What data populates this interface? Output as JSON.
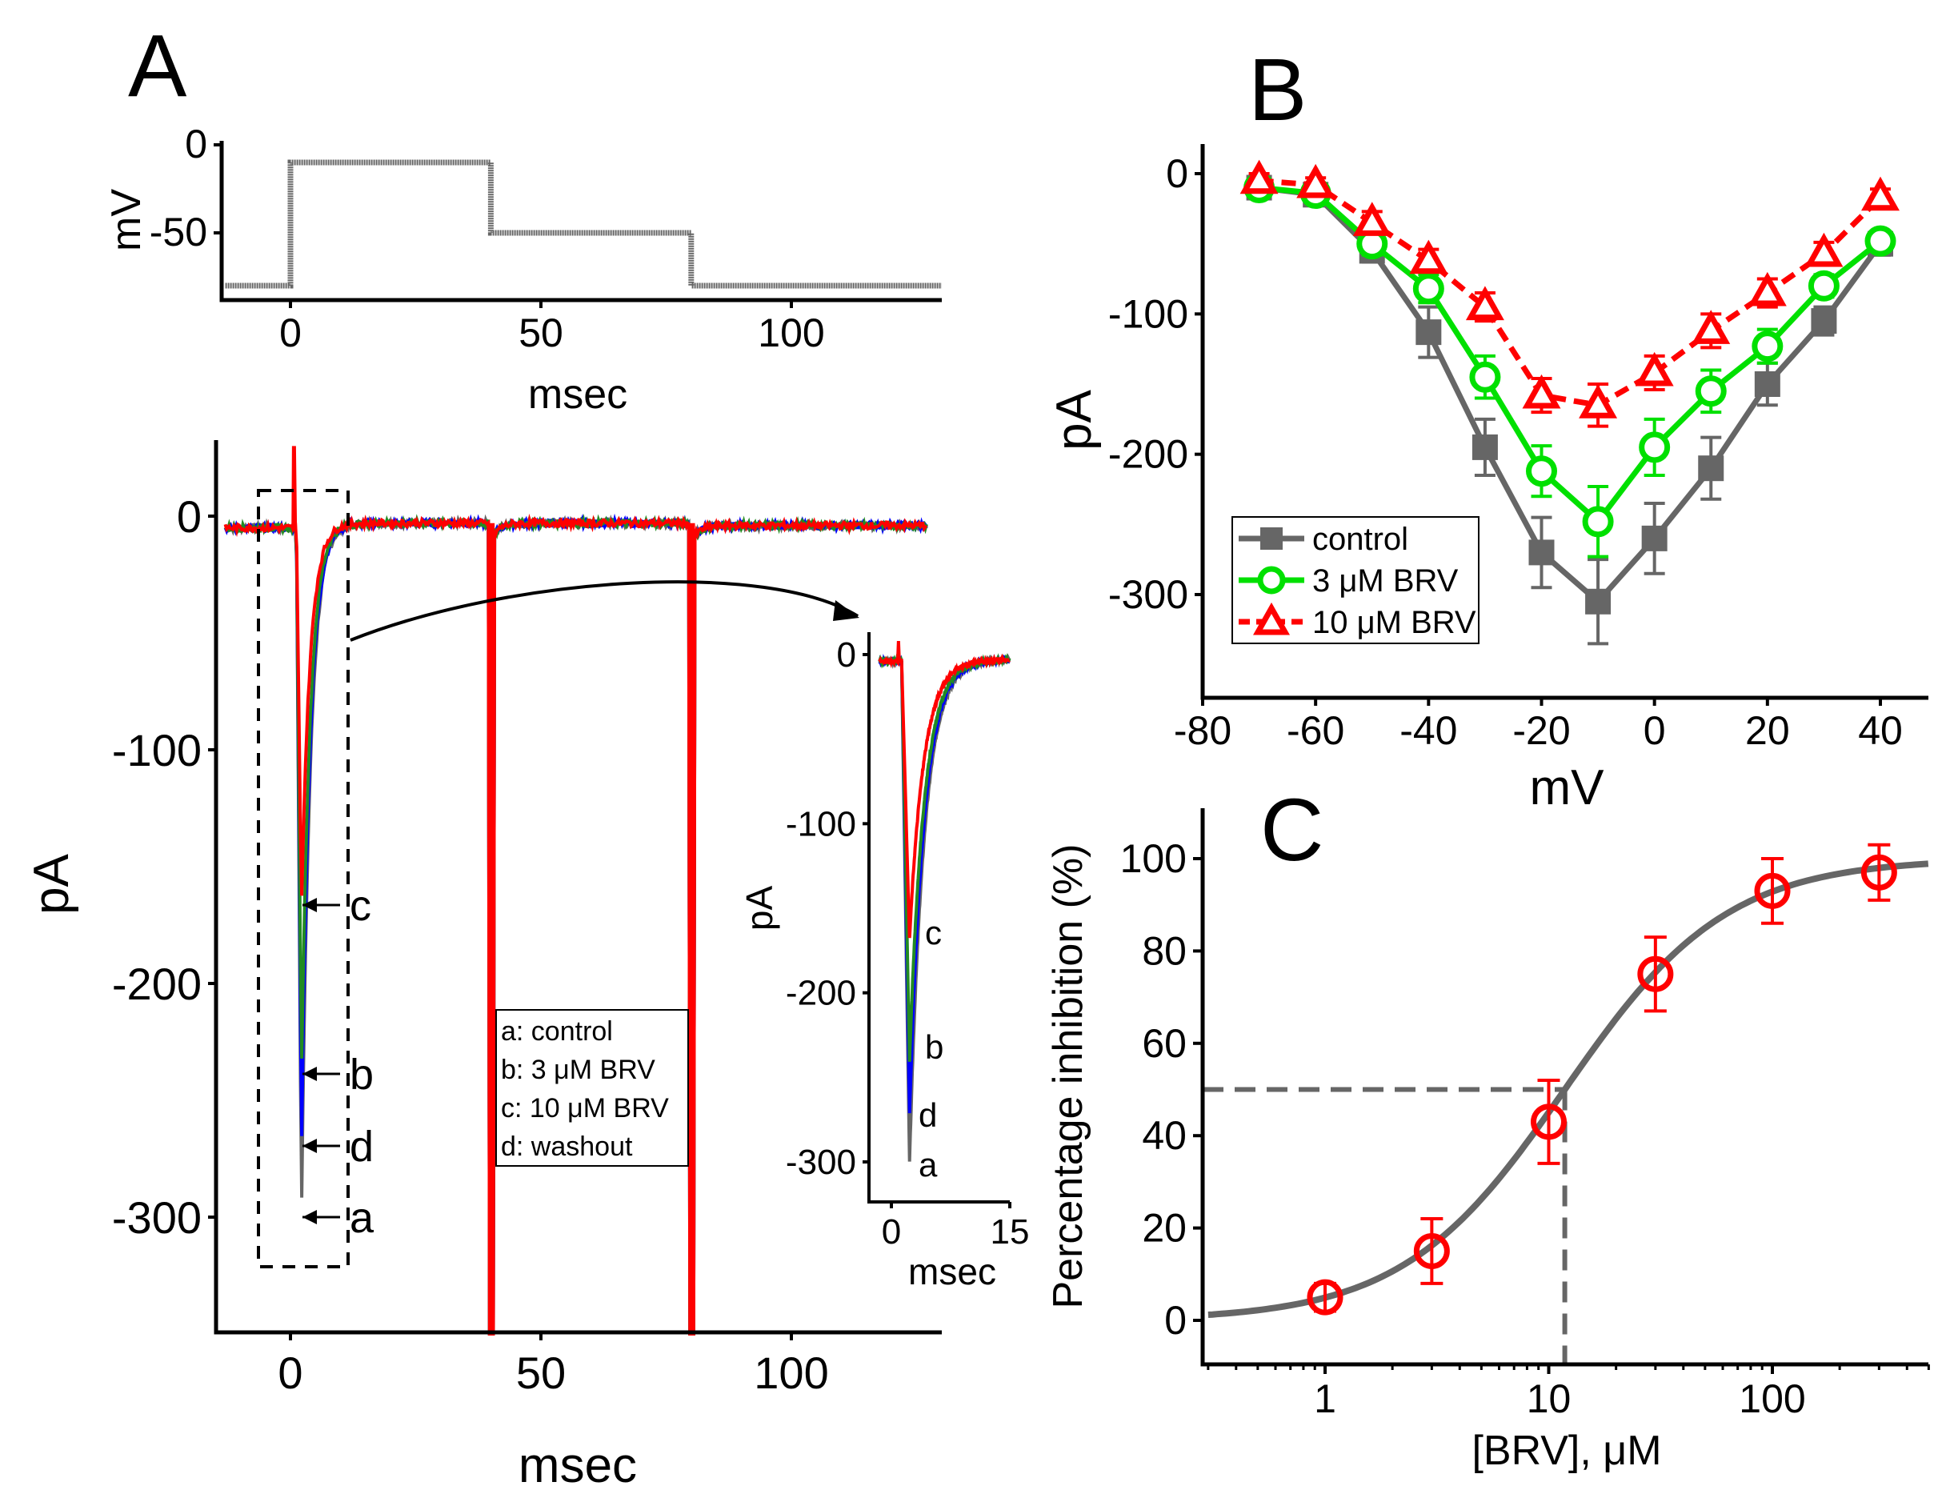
{
  "panels": {
    "A": "A",
    "B": "B",
    "C": "C"
  },
  "colors": {
    "control": "#666666",
    "brv3": "#00e000",
    "brv10": "#ff0000",
    "washout": "#0000ff",
    "trace_green": "#228b22",
    "axis": "#000000"
  },
  "chart_data": [
    {
      "id": "A-protocol",
      "type": "line",
      "title": "",
      "xlabel": "msec",
      "ylabel": "mV",
      "xlim": [
        -13,
        130
      ],
      "ylim": [
        -90,
        3
      ],
      "xticks": [
        0,
        50,
        100
      ],
      "yticks": [
        0,
        -50
      ],
      "x": [
        -13,
        0,
        0,
        40,
        40,
        80,
        80,
        130
      ],
      "y": [
        -80,
        -80,
        -10,
        -10,
        -50,
        -50,
        -80,
        -80
      ]
    },
    {
      "id": "A-traces",
      "type": "line",
      "title": "",
      "xlabel": "msec",
      "ylabel": "pA",
      "xlim": [
        -15,
        130
      ],
      "ylim": [
        -350,
        32
      ],
      "xticks": [
        0,
        50,
        100
      ],
      "yticks": [
        0,
        -100,
        -200,
        -300
      ],
      "series": [
        {
          "key": "a",
          "name": "control",
          "peak": -300
        },
        {
          "key": "d",
          "name": "washout",
          "peak": -272
        },
        {
          "key": "b",
          "name": "3 μM BRV",
          "peak": -240
        },
        {
          "key": "c",
          "name": "10 μM BRV",
          "peak": -168
        }
      ],
      "legend": [
        "a: control",
        "b: 3 μM BRV",
        "c: 10 μM BRV",
        "d: washout"
      ],
      "peak_labels": [
        "c",
        "b",
        "d",
        "a"
      ],
      "annotations": [
        "dashed box around 0-12 msec expanded in inset"
      ]
    },
    {
      "id": "A-inset",
      "type": "line",
      "title": "",
      "xlabel": "msec",
      "ylabel": "pA",
      "xlim": [
        -2,
        15
      ],
      "ylim": [
        -322,
        10
      ],
      "xticks": [
        0,
        15
      ],
      "yticks": [
        0,
        -100,
        -200,
        -300
      ],
      "peak_labels": [
        "c",
        "b",
        "d",
        "a"
      ]
    },
    {
      "id": "B",
      "type": "line",
      "title": "",
      "xlabel": "mV",
      "ylabel": "pA",
      "xlim": [
        -80,
        50
      ],
      "ylim": [
        -375,
        25
      ],
      "xticks": [
        -80,
        -60,
        -40,
        -20,
        0,
        20,
        40
      ],
      "yticks": [
        0,
        -100,
        -200,
        -300
      ],
      "legend_position": "bottom-left",
      "x": [
        -70,
        -60,
        -50,
        -40,
        -30,
        -20,
        -10,
        0,
        10,
        20,
        30,
        40
      ],
      "series": [
        {
          "name": "control",
          "marker": "square",
          "values": [
            -10,
            -15,
            -55,
            -113,
            -195,
            -270,
            -305,
            -260,
            -210,
            -150,
            -105,
            -50
          ],
          "err": [
            5,
            5,
            8,
            18,
            20,
            25,
            30,
            25,
            22,
            15,
            10,
            8
          ]
        },
        {
          "name": "3 μM BRV",
          "marker": "circle",
          "values": [
            -10,
            -14,
            -50,
            -82,
            -145,
            -212,
            -248,
            -195,
            -155,
            -123,
            -80,
            -48
          ],
          "err": [
            5,
            5,
            8,
            10,
            15,
            18,
            25,
            20,
            15,
            12,
            8,
            6
          ]
        },
        {
          "name": "10 μM BRV",
          "marker": "triangle",
          "values": [
            -5,
            -8,
            -35,
            -62,
            -95,
            -158,
            -165,
            -142,
            -112,
            -85,
            -57,
            -17
          ],
          "err": [
            5,
            5,
            8,
            8,
            10,
            12,
            15,
            12,
            12,
            10,
            8,
            6
          ]
        }
      ]
    },
    {
      "id": "C",
      "type": "scatter",
      "title": "",
      "xlabel": "[BRV], μM",
      "ylabel": "Percentage inhibition (%)",
      "xscale": "log",
      "xlim": [
        0.3,
        500
      ],
      "ylim": [
        -10,
        110
      ],
      "xticks": [
        1,
        10,
        100
      ],
      "yticks": [
        0,
        20,
        40,
        60,
        80,
        100
      ],
      "x": [
        1,
        3,
        10,
        30,
        100,
        300
      ],
      "values": [
        5,
        15,
        43,
        75,
        93,
        97
      ],
      "err": [
        3,
        7,
        9,
        8,
        7,
        6
      ],
      "fit": {
        "type": "Hill",
        "IC50": 11.8,
        "n": 1.2,
        "max": 100
      },
      "reference_lines": {
        "y": 50,
        "x": 11.8
      }
    }
  ]
}
